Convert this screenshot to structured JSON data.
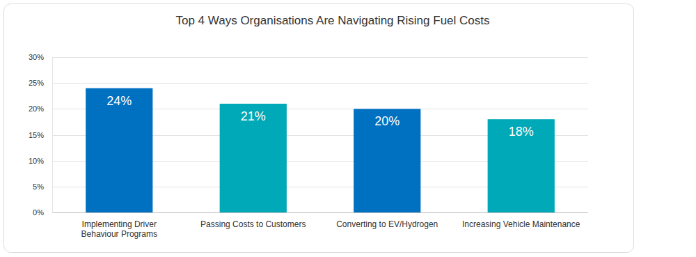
{
  "chart_data": {
    "type": "bar",
    "title": "Top 4 Ways Organisations Are Navigating Rising Fuel Costs",
    "categories": [
      "Implementing Driver Behaviour Programs",
      "Passing Costs to Customers",
      "Converting to EV/Hydrogen",
      "Increasing Vehicle Maintenance"
    ],
    "values": [
      24,
      21,
      20,
      18
    ],
    "value_labels": [
      "24%",
      "21%",
      "20%",
      "18%"
    ],
    "colors": [
      "#0070c0",
      "#00a9b7",
      "#0070c0",
      "#00a9b7"
    ],
    "ylim": [
      0,
      30
    ],
    "yticks": [
      {
        "value": 0,
        "label": "0%"
      },
      {
        "value": 5,
        "label": "5%"
      },
      {
        "value": 10,
        "label": "10%"
      },
      {
        "value": 15,
        "label": "15%"
      },
      {
        "value": 20,
        "label": "20%"
      },
      {
        "value": 25,
        "label": "25%"
      },
      {
        "value": 30,
        "label": "30%"
      }
    ],
    "grid": true,
    "data_labels": true
  }
}
